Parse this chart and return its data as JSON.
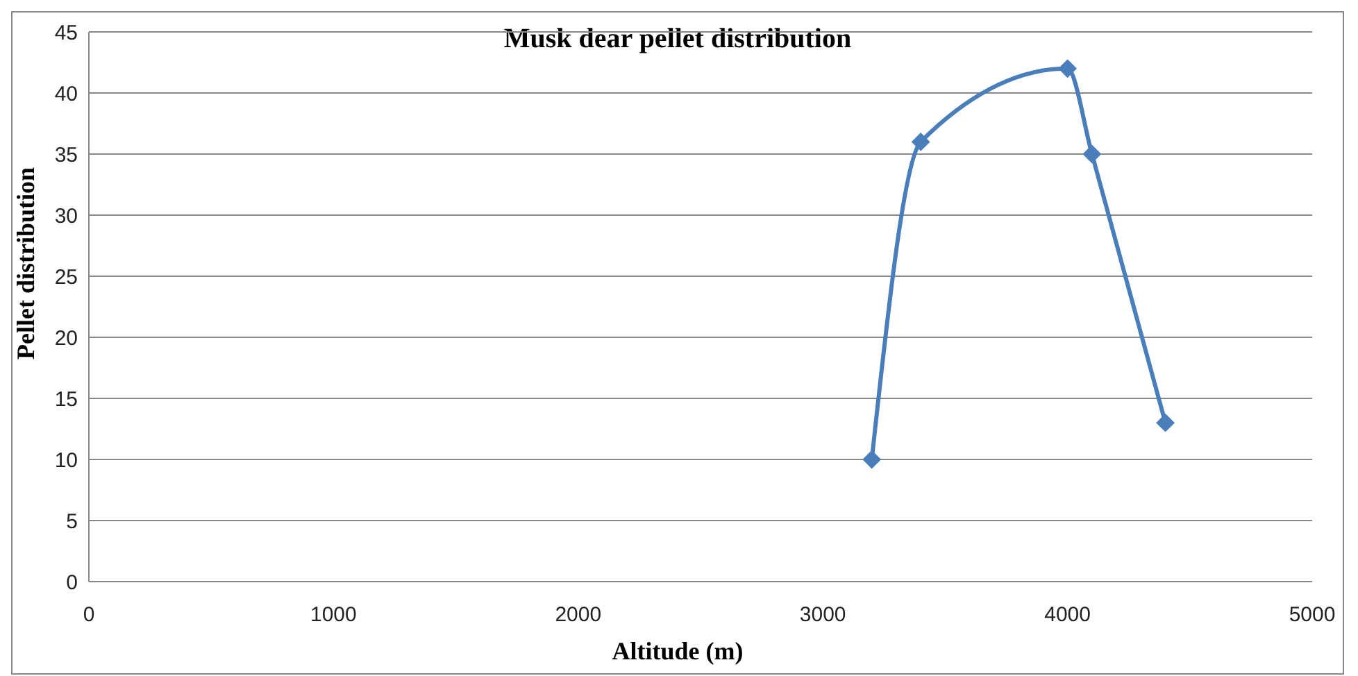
{
  "chart_data": {
    "type": "line",
    "title": "Musk dear pellet distribution",
    "xlabel": "Altitude (m)",
    "ylabel": "Pellet distribution",
    "x": [
      3200,
      3400,
      4000,
      4100,
      4400
    ],
    "series": [
      {
        "color": "#4a7ebb",
        "values": [
          10,
          36,
          42,
          35,
          13
        ]
      }
    ],
    "xlim": [
      0,
      5000
    ],
    "xticks": [
      0,
      1000,
      2000,
      3000,
      4000,
      5000
    ],
    "ylim": [
      0,
      45
    ],
    "yticks": [
      0,
      5,
      10,
      15,
      20,
      25,
      30,
      35,
      40,
      45
    ],
    "grid": "y",
    "marker": "diamond",
    "line_style": "solid"
  }
}
